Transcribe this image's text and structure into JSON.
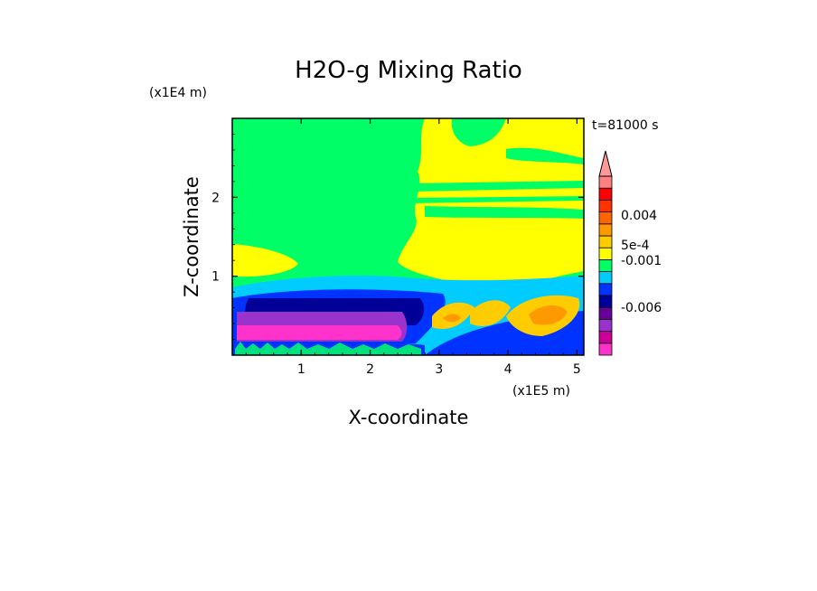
{
  "chart_data": {
    "type": "heatmap",
    "title": "H2O-g Mixing Ratio",
    "time_label": "t=81000 s",
    "xlabel": "X-coordinate",
    "ylabel": "Z-coordinate",
    "x_scale_label": "(x1E5 m)",
    "y_scale_label": "(x1E4 m)",
    "xlim": [
      0,
      5.1
    ],
    "ylim": [
      0,
      3.0
    ],
    "x_ticks": [
      1,
      2,
      3,
      4,
      5
    ],
    "x_tick_labels": [
      "1",
      "2",
      "3",
      "4",
      "5"
    ],
    "y_ticks": [
      1,
      2
    ],
    "y_tick_labels": [
      "1",
      "2"
    ],
    "colorbar": {
      "colors": [
        "#ff33cc",
        "#cc0099",
        "#9933cc",
        "#660099",
        "#000099",
        "#0033ff",
        "#00ccff",
        "#00ff66",
        "#ffff00",
        "#ffcc00",
        "#ff9900",
        "#ff6600",
        "#ff3300",
        "#ff0000",
        "#ff8080"
      ],
      "extend_top_color": "#ff9999",
      "labels": [
        "0.004",
        "5e-4",
        "-0.001",
        "-0.006"
      ],
      "label_levels": [
        0.004,
        0.0005,
        -0.001,
        -0.006
      ]
    },
    "regions": [
      {
        "color": "#00ff66",
        "z_min": 0.9,
        "z_max": 3.0,
        "x_min": 0,
        "x_max": 2.6
      },
      {
        "color": "#ffff00",
        "z_min": 0.9,
        "z_max": 3.0,
        "x_min": 2.6,
        "x_max": 5.1
      },
      {
        "color": "#ffff00",
        "z_min": 0.85,
        "z_max": 1.35,
        "x_min": 0,
        "x_max": 0.9
      },
      {
        "color": "#00ccff",
        "z_min": 0.15,
        "z_max": 0.95,
        "x_min": 0,
        "x_max": 3.6
      },
      {
        "color": "#0033ff",
        "z_min": 0.1,
        "z_max": 0.8,
        "x_min": 0.1,
        "x_max": 3.3
      },
      {
        "color": "#000099",
        "z_min": 0.4,
        "z_max": 0.72,
        "x_min": 0.3,
        "x_max": 2.9
      },
      {
        "color": "#9933cc",
        "z_min": 0.15,
        "z_max": 0.52,
        "x_min": 0.05,
        "x_max": 2.5
      },
      {
        "color": "#ff33cc",
        "z_min": 0.15,
        "z_max": 0.3,
        "x_min": 0.05,
        "x_max": 2.4
      },
      {
        "color": "#ffcc00",
        "z_min": 0.25,
        "z_max": 0.65,
        "x_min": 4.0,
        "x_max": 4.9
      },
      {
        "color": "#ff9900",
        "z_min": 0.35,
        "z_max": 0.55,
        "x_min": 4.3,
        "x_max": 4.8
      }
    ]
  }
}
